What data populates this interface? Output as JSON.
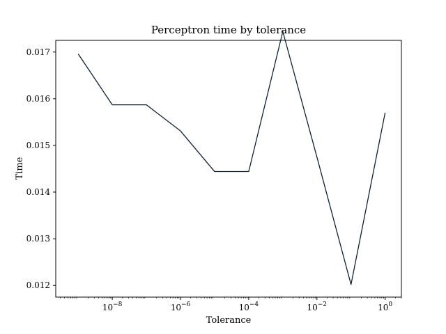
{
  "chart_data": {
    "type": "line",
    "title": "Perceptron time by tolerance",
    "xlabel": "Tolerance",
    "ylabel": "Time",
    "x_scale": "log",
    "xlim": [
      2.2e-10,
      3.0
    ],
    "ylim": [
      0.01175,
      0.01725
    ],
    "x_ticks": [
      {
        "value": 1e-08,
        "base": "10",
        "exp": "−8"
      },
      {
        "value": 1e-06,
        "base": "10",
        "exp": "−6"
      },
      {
        "value": 0.0001,
        "base": "10",
        "exp": "−4"
      },
      {
        "value": 0.01,
        "base": "10",
        "exp": "−2"
      },
      {
        "value": 1,
        "base": "10",
        "exp": "0"
      }
    ],
    "y_ticks": [
      {
        "value": 0.012,
        "label": "0.012"
      },
      {
        "value": 0.013,
        "label": "0.013"
      },
      {
        "value": 0.014,
        "label": "0.014"
      },
      {
        "value": 0.015,
        "label": "0.015"
      },
      {
        "value": 0.016,
        "label": "0.016"
      },
      {
        "value": 0.017,
        "label": "0.017"
      }
    ],
    "grid": false,
    "series": [
      {
        "color": "#0f2233",
        "x": [
          1e-09,
          1e-08,
          1e-07,
          1e-06,
          1e-05,
          0.0001,
          0.001,
          0.01,
          0.1,
          1
        ],
        "y": [
          0.01696,
          0.01587,
          0.01587,
          0.01531,
          0.01444,
          0.01444,
          0.01744,
          0.01475,
          0.01202,
          0.0157
        ]
      }
    ]
  }
}
